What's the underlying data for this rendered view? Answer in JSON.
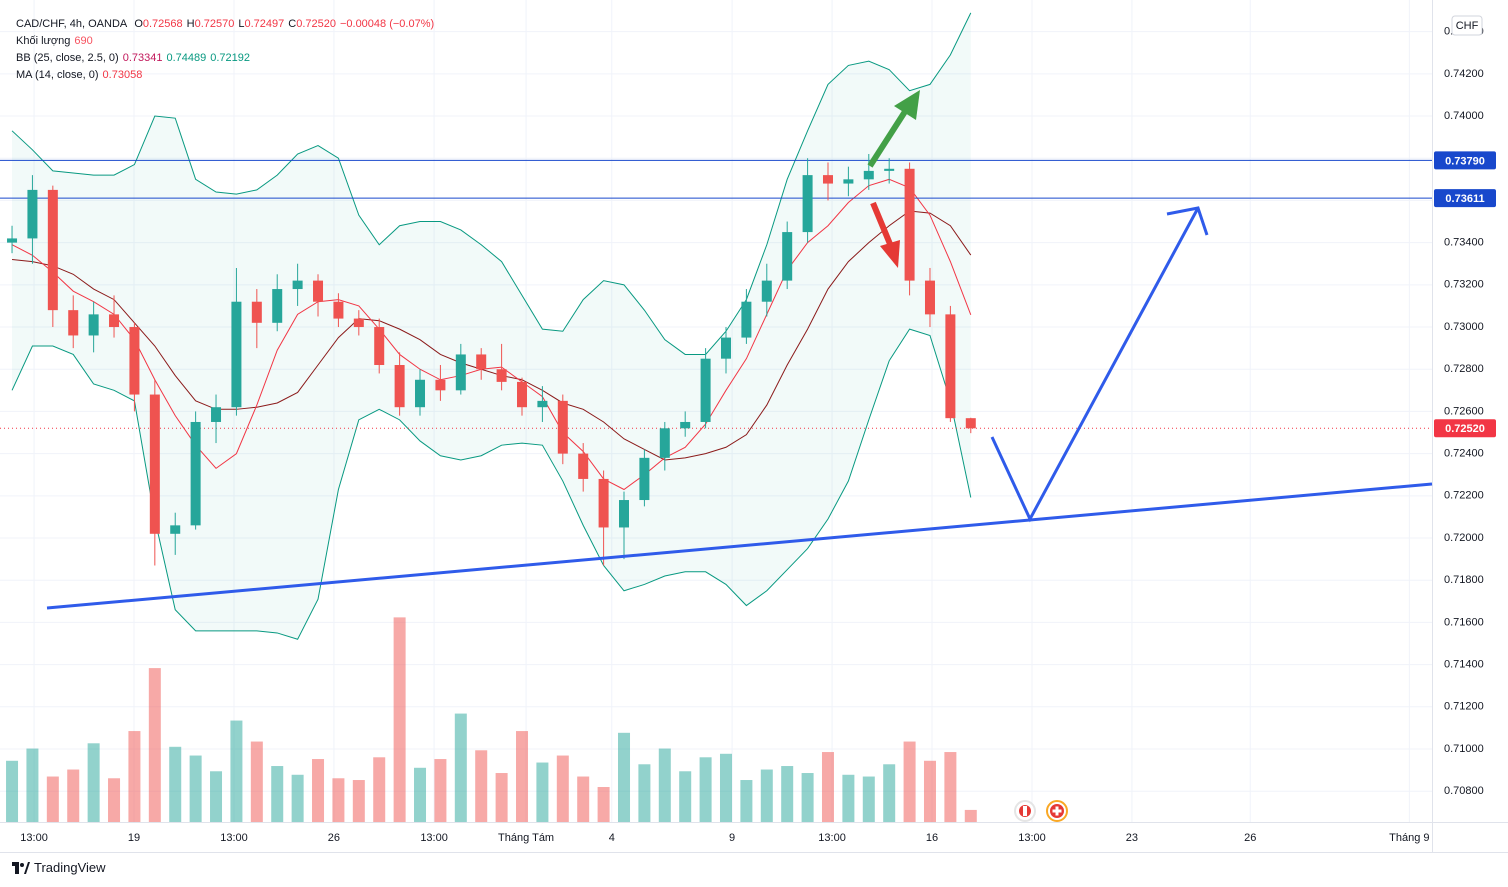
{
  "chart_data": {
    "type": "candlestick",
    "legend": {
      "symbol": "CAD/CHF, 4h, OANDA",
      "ohlc": [
        {
          "key": "O",
          "text": "0.72568"
        },
        {
          "key": "H",
          "text": "0.72570"
        },
        {
          "key": "L",
          "text": "0.72497"
        },
        {
          "key": "C",
          "text": "0.72520"
        }
      ],
      "ohlc_color": "#f23645",
      "change": "−0.00048 (−0.07%)",
      "indicators": [
        {
          "name": "Khối lượng",
          "values": [
            "690"
          ],
          "colors": [
            "#f7525f"
          ]
        },
        {
          "name": "BB (25, close, 2.5, 0)",
          "values": [
            "0.73341",
            "0.74489",
            "0.72192"
          ],
          "colors": [
            "#c2185b",
            "#089981",
            "#089981"
          ]
        },
        {
          "name": "MA (14, close, 0)",
          "values": [
            "0.73058"
          ],
          "colors": [
            "#f23645"
          ]
        }
      ]
    },
    "candles": {
      "open": [
        0.734,
        0.7342,
        0.7365,
        0.7308,
        0.7296,
        0.7306,
        0.73,
        0.7268,
        0.7202,
        0.7206,
        0.7255,
        0.7262,
        0.7312,
        0.7302,
        0.7318,
        0.7322,
        0.7312,
        0.7304,
        0.73,
        0.7282,
        0.7262,
        0.7275,
        0.727,
        0.7287,
        0.728,
        0.7274,
        0.7262,
        0.7265,
        0.724,
        0.7228,
        0.7205,
        0.7218,
        0.7238,
        0.7252,
        0.7255,
        0.7285,
        0.7295,
        0.7312,
        0.7322,
        0.7345,
        0.7372,
        0.7368,
        0.737,
        0.7374,
        0.7375,
        0.7322,
        0.7306,
        0.72568
      ],
      "high": [
        0.7348,
        0.7372,
        0.7367,
        0.7315,
        0.7312,
        0.7315,
        0.7302,
        0.7275,
        0.7212,
        0.726,
        0.7268,
        0.7328,
        0.7318,
        0.7325,
        0.733,
        0.7325,
        0.7316,
        0.7308,
        0.7304,
        0.7288,
        0.728,
        0.7282,
        0.7292,
        0.729,
        0.7292,
        0.7276,
        0.7272,
        0.7268,
        0.7245,
        0.7232,
        0.7222,
        0.7242,
        0.7255,
        0.726,
        0.729,
        0.73,
        0.7318,
        0.733,
        0.735,
        0.738,
        0.7378,
        0.7376,
        0.7382,
        0.738,
        0.7378,
        0.7328,
        0.731,
        0.7257
      ],
      "low": [
        0.7335,
        0.733,
        0.73,
        0.729,
        0.7288,
        0.7295,
        0.726,
        0.7187,
        0.7192,
        0.7204,
        0.7245,
        0.7258,
        0.729,
        0.7298,
        0.731,
        0.7305,
        0.73,
        0.7296,
        0.7278,
        0.7258,
        0.7258,
        0.7265,
        0.7268,
        0.7275,
        0.727,
        0.7258,
        0.7255,
        0.7235,
        0.7222,
        0.7187,
        0.719,
        0.7215,
        0.7232,
        0.7248,
        0.7252,
        0.7278,
        0.7292,
        0.7305,
        0.7318,
        0.734,
        0.736,
        0.7362,
        0.7365,
        0.7368,
        0.7315,
        0.73,
        0.7255,
        0.72497
      ],
      "close": [
        0.7342,
        0.7365,
        0.7308,
        0.7296,
        0.7306,
        0.73,
        0.7268,
        0.7202,
        0.7206,
        0.7255,
        0.7262,
        0.7312,
        0.7302,
        0.7318,
        0.7322,
        0.7312,
        0.7304,
        0.73,
        0.7282,
        0.7262,
        0.7275,
        0.727,
        0.7287,
        0.728,
        0.7274,
        0.7262,
        0.7265,
        0.724,
        0.7228,
        0.7205,
        0.7218,
        0.7238,
        0.7252,
        0.7255,
        0.7285,
        0.7295,
        0.7312,
        0.7322,
        0.7345,
        0.7372,
        0.7368,
        0.737,
        0.7374,
        0.7375,
        0.7322,
        0.7306,
        0.72568,
        0.7252
      ],
      "up_color": "#26a69a",
      "down_color": "#ef5350"
    },
    "volume": {
      "values": [
        3500,
        4200,
        2600,
        3000,
        4500,
        2500,
        5200,
        8800,
        4300,
        3800,
        2900,
        5800,
        4600,
        3200,
        2700,
        3600,
        2500,
        2400,
        3700,
        11700,
        3100,
        3600,
        6200,
        4100,
        2800,
        5200,
        3400,
        3800,
        2600,
        2000,
        5100,
        3300,
        4200,
        2900,
        3700,
        3900,
        2400,
        3000,
        3200,
        2800,
        4000,
        2700,
        2600,
        3300,
        4600,
        3500,
        4000,
        690
      ],
      "lim": [
        0,
        47000
      ],
      "up_color": "rgba(38,166,154,0.5)",
      "down_color": "rgba(239,83,80,0.5)"
    },
    "bb": {
      "upper": {
        "color": "#089981",
        "values": [
          0.7393,
          0.7384,
          0.7374,
          0.7373,
          0.7372,
          0.7372,
          0.7377,
          0.74,
          0.7399,
          0.737,
          0.7364,
          0.7363,
          0.7365,
          0.7372,
          0.7382,
          0.7386,
          0.738,
          0.7353,
          0.7339,
          0.7348,
          0.735,
          0.735,
          0.7346,
          0.7339,
          0.7331,
          0.7315,
          0.7299,
          0.7298,
          0.7313,
          0.7322,
          0.732,
          0.7308,
          0.7294,
          0.7287,
          0.7287,
          0.7298,
          0.7313,
          0.7339,
          0.737,
          0.7393,
          0.7415,
          0.7424,
          0.7426,
          0.7422,
          0.7412,
          0.7415,
          0.7429,
          0.74489
        ]
      },
      "lower": {
        "color": "#089981",
        "values": [
          0.727,
          0.7291,
          0.7291,
          0.7287,
          0.7273,
          0.727,
          0.7265,
          0.7209,
          0.7166,
          0.7156,
          0.7156,
          0.7156,
          0.7156,
          0.7155,
          0.7152,
          0.7171,
          0.7223,
          0.7256,
          0.7261,
          0.7256,
          0.7246,
          0.7239,
          0.7237,
          0.7239,
          0.7244,
          0.7245,
          0.7244,
          0.7227,
          0.7206,
          0.7187,
          0.7175,
          0.7178,
          0.7182,
          0.7184,
          0.7184,
          0.7178,
          0.7168,
          0.7175,
          0.7185,
          0.7195,
          0.7209,
          0.7227,
          0.7256,
          0.7284,
          0.7299,
          0.7296,
          0.7265,
          0.72192
        ]
      },
      "basis": {
        "color": "#8b1a1a",
        "values": [
          0.7332,
          0.7331,
          0.7329,
          0.7325,
          0.7318,
          0.7313,
          0.7302,
          0.7291,
          0.7277,
          0.7265,
          0.7261,
          0.7261,
          0.7262,
          0.7264,
          0.7269,
          0.7282,
          0.7295,
          0.7304,
          0.7303,
          0.7299,
          0.7294,
          0.7287,
          0.7283,
          0.728,
          0.7277,
          0.7275,
          0.727,
          0.7264,
          0.7261,
          0.7255,
          0.7247,
          0.7242,
          0.7237,
          0.7238,
          0.724,
          0.7243,
          0.7249,
          0.7263,
          0.7282,
          0.7299,
          0.7318,
          0.7331,
          0.734,
          0.7348,
          0.7355,
          0.7354,
          0.7348,
          0.73341
        ]
      },
      "fill": "rgba(38,166,154,0.06)"
    },
    "ma": {
      "color": "#f23645",
      "values": [
        0.7339,
        0.7334,
        0.7326,
        0.7317,
        0.7312,
        0.7306,
        0.7294,
        0.7275,
        0.7258,
        0.7244,
        0.7233,
        0.724,
        0.7263,
        0.7289,
        0.7306,
        0.7312,
        0.7313,
        0.731,
        0.7299,
        0.7287,
        0.728,
        0.7275,
        0.7277,
        0.728,
        0.7281,
        0.7274,
        0.7267,
        0.725,
        0.7241,
        0.7228,
        0.7223,
        0.723,
        0.7238,
        0.7243,
        0.7254,
        0.727,
        0.7285,
        0.7306,
        0.7327,
        0.734,
        0.7348,
        0.7359,
        0.7367,
        0.737,
        0.7366,
        0.7353,
        0.7331,
        0.73058
      ]
    },
    "hlines": [
      {
        "value": 0.7379,
        "label": "0.73790"
      },
      {
        "value": 0.73611,
        "label": "0.73611"
      }
    ],
    "hline_color": "#1848cc",
    "last_price": {
      "value": 0.7252,
      "label": "0.72520"
    },
    "last_price_color": "#f23645",
    "xlim": [
      -0.59,
      69.61
    ],
    "xticks": [
      {
        "value": 1.08,
        "label": "13:00"
      },
      {
        "value": 5.98,
        "label": "19"
      },
      {
        "value": 10.88,
        "label": "13:00"
      },
      {
        "value": 15.78,
        "label": "26"
      },
      {
        "value": 20.69,
        "label": "13:00"
      },
      {
        "value": 25.2,
        "label": "Tháng Tám"
      },
      {
        "value": 29.4,
        "label": "4"
      },
      {
        "value": 35.3,
        "label": "9"
      },
      {
        "value": 40.2,
        "label": "13:00"
      },
      {
        "value": 45.1,
        "label": "16"
      },
      {
        "value": 50.0,
        "label": "13:00"
      },
      {
        "value": 54.9,
        "label": "23"
      },
      {
        "value": 60.7,
        "label": "26"
      },
      {
        "value": 68.5,
        "label": "Tháng 9"
      }
    ],
    "ylim": [
      0.70654,
      0.7455
    ],
    "yticks": [
      {
        "value": 0.708,
        "label": "0.70800"
      },
      {
        "value": 0.71,
        "label": "0.71000"
      },
      {
        "value": 0.712,
        "label": "0.71200"
      },
      {
        "value": 0.714,
        "label": "0.71400"
      },
      {
        "value": 0.716,
        "label": "0.71600"
      },
      {
        "value": 0.718,
        "label": "0.71800"
      },
      {
        "value": 0.72,
        "label": "0.72000"
      },
      {
        "value": 0.722,
        "label": "0.72200"
      },
      {
        "value": 0.724,
        "label": "0.72400"
      },
      {
        "value": 0.726,
        "label": "0.72600"
      },
      {
        "value": 0.728,
        "label": "0.72800"
      },
      {
        "value": 0.73,
        "label": "0.73000"
      },
      {
        "value": 0.732,
        "label": "0.73200"
      },
      {
        "value": 0.734,
        "label": "0.73400"
      },
      {
        "value": 0.736,
        "label": "0.73600"
      },
      {
        "value": 0.738,
        "label": "0.73800"
      },
      {
        "value": 0.74,
        "label": "0.74000"
      },
      {
        "value": 0.742,
        "label": "0.74200"
      },
      {
        "value": 0.744,
        "label": "0.74400"
      }
    ],
    "grid": true,
    "currency": "CHF",
    "branding": "TradingView"
  }
}
